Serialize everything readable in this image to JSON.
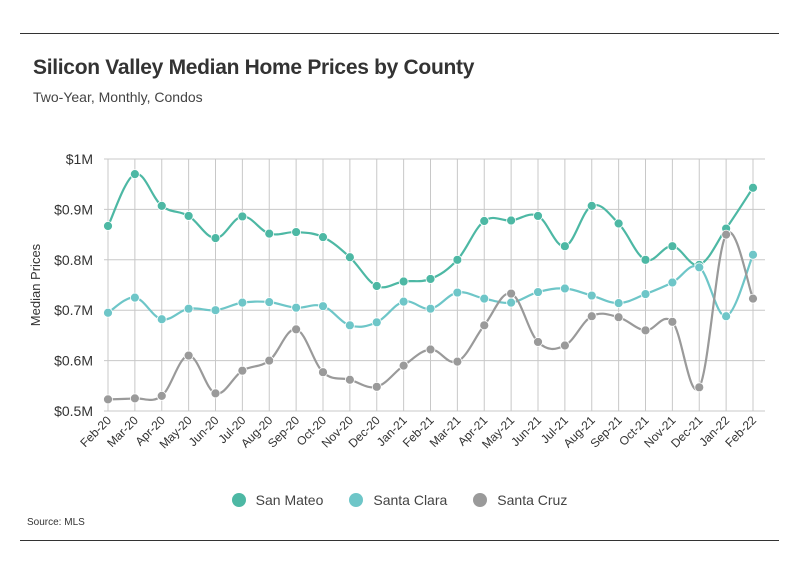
{
  "title": "Silicon Valley Median Home Prices by County",
  "subtitle": "Two-Year, Monthly, Condos",
  "source": "Source:  MLS",
  "colors": {
    "San Mateo": "#4db8a4",
    "Santa Clara": "#6ec6c8",
    "Santa Cruz": "#9a9a9a",
    "grid": "#c8c8c8",
    "text": "#333333"
  },
  "chart_data": {
    "type": "line",
    "title": "Silicon Valley Median Home Prices by County",
    "subtitle": "Two-Year, Monthly, Condos",
    "xlabel": "",
    "ylabel": "Median Prices",
    "ylim": [
      500000,
      1000000
    ],
    "yticks": [
      {
        "value": 500000,
        "label": "$0.5M"
      },
      {
        "value": 600000,
        "label": "$0.6M"
      },
      {
        "value": 700000,
        "label": "$0.7M"
      },
      {
        "value": 800000,
        "label": "$0.8M"
      },
      {
        "value": 900000,
        "label": "$0.9M"
      },
      {
        "value": 1000000,
        "label": "$1M"
      }
    ],
    "grid": true,
    "legend_position": "bottom",
    "categories": [
      "Feb-20",
      "Mar-20",
      "Apr-20",
      "May-20",
      "Jun-20",
      "Jul-20",
      "Aug-20",
      "Sep-20",
      "Oct-20",
      "Nov-20",
      "Dec-20",
      "Jan-21",
      "Feb-21",
      "Mar-21",
      "Apr-21",
      "May-21",
      "Jun-21",
      "Jul-21",
      "Aug-21",
      "Sep-21",
      "Oct-21",
      "Nov-21",
      "Dec-21",
      "Jan-22",
      "Feb-22"
    ],
    "series": [
      {
        "name": "San Mateo",
        "color": "#4db8a4",
        "values": [
          867000,
          970000,
          907000,
          887000,
          843000,
          886000,
          852000,
          855000,
          845000,
          805000,
          748000,
          757000,
          762000,
          800000,
          877000,
          878000,
          887000,
          827000,
          907000,
          872000,
          800000,
          827000,
          790000,
          862000,
          943000
        ]
      },
      {
        "name": "Santa Clara",
        "color": "#6ec6c8",
        "values": [
          695000,
          725000,
          682000,
          703000,
          700000,
          715000,
          716000,
          705000,
          708000,
          670000,
          676000,
          717000,
          703000,
          735000,
          723000,
          715000,
          736000,
          743000,
          729000,
          714000,
          732000,
          755000,
          785000,
          688000,
          810000
        ]
      },
      {
        "name": "Santa Cruz",
        "color": "#9a9a9a",
        "values": [
          523000,
          525000,
          530000,
          610000,
          535000,
          580000,
          600000,
          662000,
          577000,
          562000,
          548000,
          590000,
          622000,
          598000,
          670000,
          733000,
          637000,
          630000,
          688000,
          686000,
          660000,
          677000,
          547000,
          850000,
          723000
        ]
      }
    ]
  }
}
